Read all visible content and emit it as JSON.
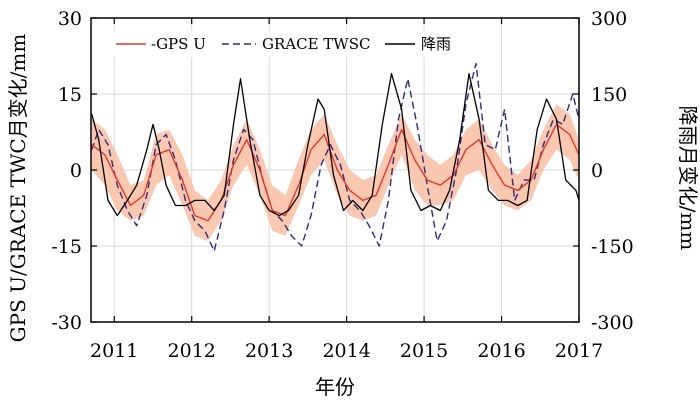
{
  "chart_data": {
    "type": "line",
    "xlabel": "年份",
    "ylabel_left": "GPS U/GRACE TWC月变化/mm",
    "ylabel_right": "降雨月变化/mm",
    "xlim": [
      2010.7,
      2017.0
    ],
    "ylim_left": [
      -30,
      30
    ],
    "ylim_right": [
      -300,
      300
    ],
    "x_ticks": [
      2011,
      2012,
      2013,
      2014,
      2015,
      2016,
      2017
    ],
    "y_ticks_left": [
      -30,
      -15,
      0,
      15,
      30
    ],
    "y_ticks_right": [
      -300,
      -150,
      0,
      150,
      300
    ],
    "grid": true,
    "legend_position": "top-left",
    "legend": [
      "-GPS U",
      "GRACE TWSC",
      "降雨"
    ],
    "colors": {
      "gps": "#e8352b",
      "band": "#f9c2a8",
      "grace": "#2e2a7a",
      "rain": "#000000"
    },
    "gps_band": {
      "x": [
        2010.71,
        2010.88,
        2011.04,
        2011.21,
        2011.38,
        2011.54,
        2011.71,
        2011.88,
        2012.04,
        2012.21,
        2012.38,
        2012.54,
        2012.71,
        2012.88,
        2013.04,
        2013.21,
        2013.38,
        2013.54,
        2013.71,
        2013.88,
        2014.04,
        2014.21,
        2014.38,
        2014.54,
        2014.71,
        2014.88,
        2015.04,
        2015.21,
        2015.38,
        2015.54,
        2015.71,
        2015.88,
        2016.04,
        2016.21,
        2016.38,
        2016.54,
        2016.71,
        2016.88,
        2017.0
      ],
      "upper": [
        10,
        8,
        3,
        -3,
        -2,
        7,
        8,
        3,
        -4,
        -6,
        -2,
        5,
        10,
        4,
        -3,
        -5,
        2,
        8,
        11,
        5,
        0,
        -2,
        -1,
        5,
        11,
        6,
        3,
        1,
        3,
        8,
        10,
        5,
        1,
        -1,
        2,
        8,
        13,
        11,
        6
      ],
      "lower": [
        0,
        -3,
        -8,
        -10,
        -9,
        -3,
        -1,
        -7,
        -13,
        -14,
        -10,
        -3,
        1,
        -5,
        -12,
        -13,
        -7,
        -1,
        2,
        -5,
        -9,
        -10,
        -9,
        -3,
        3,
        -4,
        -7,
        -7,
        -6,
        -1,
        0,
        -4,
        -7,
        -8,
        -6,
        0,
        4,
        2,
        -2
      ]
    },
    "series": [
      {
        "name": "-GPS U",
        "axis": "left",
        "x": [
          2010.71,
          2010.88,
          2011.04,
          2011.21,
          2011.38,
          2011.54,
          2011.71,
          2011.88,
          2012.04,
          2012.21,
          2012.38,
          2012.54,
          2012.71,
          2012.88,
          2013.04,
          2013.21,
          2013.38,
          2013.54,
          2013.71,
          2013.88,
          2014.04,
          2014.21,
          2014.38,
          2014.54,
          2014.71,
          2014.88,
          2015.04,
          2015.21,
          2015.38,
          2015.54,
          2015.71,
          2015.88,
          2016.04,
          2016.21,
          2016.38,
          2016.54,
          2016.71,
          2016.88,
          2017.0
        ],
        "values": [
          5,
          3,
          -2,
          -7,
          -5,
          3,
          4,
          -2,
          -9,
          -10,
          -6,
          1,
          6,
          0,
          -8,
          -9,
          -3,
          4,
          7,
          0,
          -4,
          -6,
          -5,
          1,
          8,
          2,
          -2,
          -3,
          -1,
          4,
          6,
          1,
          -3,
          -4,
          -2,
          4,
          9,
          7,
          3
        ]
      },
      {
        "name": "GRACE TWSC",
        "axis": "left",
        "x": [
          2010.71,
          2010.8,
          2010.92,
          2011.04,
          2011.17,
          2011.29,
          2011.42,
          2011.54,
          2011.67,
          2011.79,
          2011.92,
          2012.04,
          2012.17,
          2012.29,
          2012.42,
          2012.54,
          2012.67,
          2012.79,
          2012.92,
          2013.04,
          2013.17,
          2013.29,
          2013.42,
          2013.54,
          2013.67,
          2013.79,
          2013.92,
          2014.04,
          2014.17,
          2014.29,
          2014.42,
          2014.54,
          2014.67,
          2014.79,
          2014.92,
          2015.04,
          2015.17,
          2015.29,
          2015.42,
          2015.54,
          2015.67,
          2015.79,
          2015.92,
          2016.04,
          2016.17,
          2016.29,
          2016.42,
          2016.54,
          2016.67,
          2016.79,
          2016.92,
          2017.0
        ],
        "values": [
          4,
          8,
          5,
          -3,
          -8,
          -11,
          -5,
          5,
          7,
          2,
          -6,
          -10,
          -12,
          -16,
          -8,
          2,
          8,
          6,
          -2,
          -8,
          -10,
          -13,
          -15,
          -9,
          1,
          5,
          1,
          -6,
          -8,
          -11,
          -15,
          -6,
          10,
          18,
          8,
          -3,
          -14,
          -10,
          0,
          13,
          21,
          5,
          4,
          12,
          -6,
          -2,
          -2,
          5,
          10,
          9,
          15,
          10
        ]
      },
      {
        "name": "降雨",
        "axis": "right",
        "x": [
          2010.71,
          2010.8,
          2010.92,
          2011.04,
          2011.17,
          2011.29,
          2011.42,
          2011.5,
          2011.58,
          2011.67,
          2011.79,
          2011.92,
          2012.04,
          2012.17,
          2012.29,
          2012.42,
          2012.54,
          2012.63,
          2012.75,
          2012.88,
          2013.0,
          2013.13,
          2013.25,
          2013.38,
          2013.5,
          2013.63,
          2013.71,
          2013.83,
          2013.96,
          2014.08,
          2014.21,
          2014.33,
          2014.46,
          2014.58,
          2014.71,
          2014.83,
          2014.96,
          2015.08,
          2015.21,
          2015.33,
          2015.46,
          2015.58,
          2015.71,
          2015.83,
          2015.96,
          2016.08,
          2016.21,
          2016.33,
          2016.46,
          2016.58,
          2016.71,
          2016.83,
          2016.96,
          2017.0
        ],
        "values": [
          110,
          60,
          -60,
          -90,
          -60,
          -30,
          40,
          90,
          40,
          -30,
          -70,
          -70,
          -60,
          -60,
          -80,
          -50,
          90,
          180,
          60,
          -50,
          -80,
          -90,
          -80,
          -50,
          50,
          140,
          120,
          -10,
          -80,
          -60,
          -80,
          -50,
          90,
          190,
          120,
          -40,
          -80,
          -70,
          -80,
          -40,
          60,
          190,
          100,
          -40,
          -60,
          -60,
          -70,
          -60,
          80,
          140,
          100,
          -20,
          -40,
          -60
        ]
      }
    ]
  }
}
